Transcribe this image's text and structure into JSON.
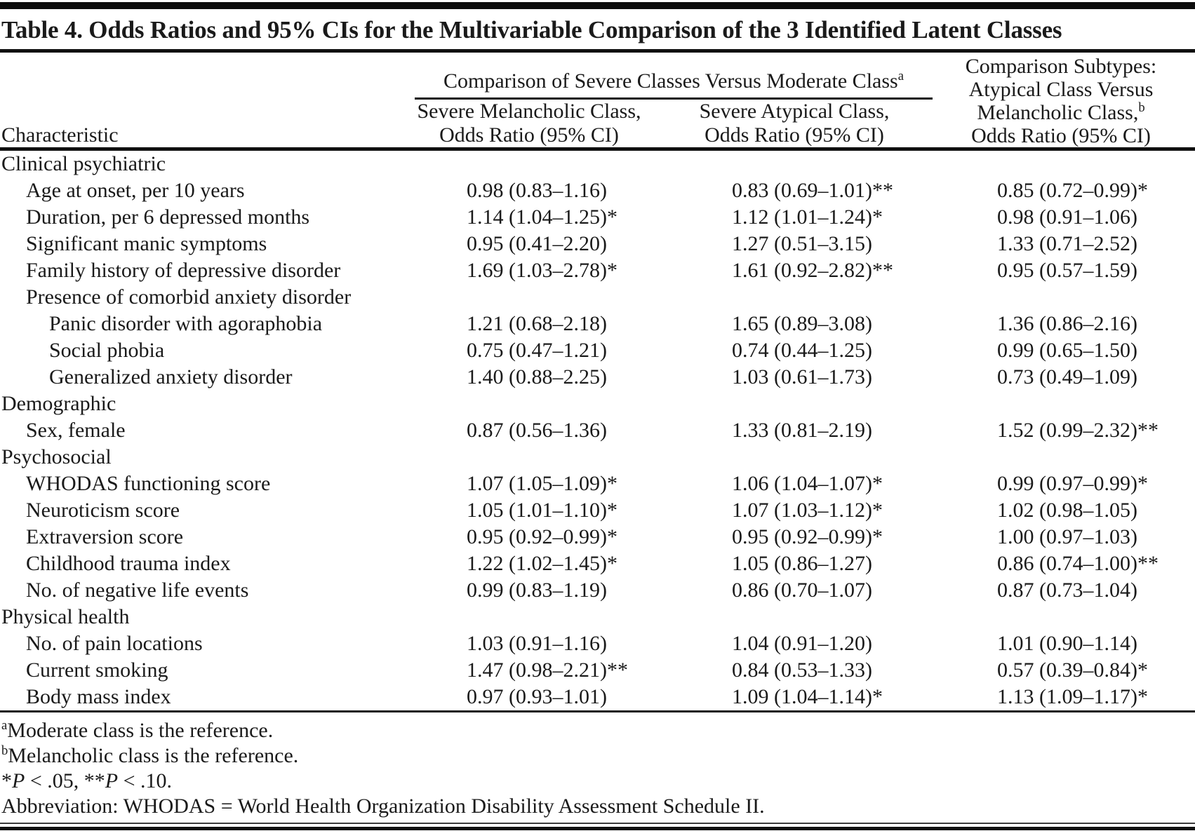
{
  "table": {
    "title": "Table 4. Odds Ratios and 95% CIs for the Multivariable Comparison of the 3 Identified Latent Classes",
    "columns": {
      "characteristic_label": "Characteristic",
      "spanner": {
        "text": "Comparison of Severe Classes Versus Moderate Class",
        "sup": "a"
      },
      "col_melancholic": {
        "line1": "Severe Melancholic Class,",
        "line2": "Odds Ratio (95% CI)"
      },
      "col_atypical": {
        "line1": "Severe Atypical Class,",
        "line2": "Odds Ratio (95% CI)"
      },
      "col_subtypes": {
        "line1": "Comparison Subtypes:",
        "line2": "Atypical Class Versus",
        "line3": "Melancholic Class,",
        "line3_sup": "b",
        "line4": "Odds Ratio (95% CI)"
      }
    },
    "rows": [
      {
        "label": "Clinical psychiatric",
        "indent": 0,
        "values": [
          "",
          "",
          ""
        ]
      },
      {
        "label": "Age at onset, per 10 years",
        "indent": 1,
        "values": [
          "0.98 (0.83–1.16)",
          "0.83 (0.69–1.01)**",
          "0.85 (0.72–0.99)*"
        ]
      },
      {
        "label": "Duration, per 6 depressed months",
        "indent": 1,
        "values": [
          "1.14 (1.04–1.25)*",
          "1.12 (1.01–1.24)*",
          "0.98 (0.91–1.06)"
        ]
      },
      {
        "label": "Significant manic symptoms",
        "indent": 1,
        "values": [
          "0.95 (0.41–2.20)",
          "1.27 (0.51–3.15)",
          "1.33 (0.71–2.52)"
        ]
      },
      {
        "label": "Family history of depressive disorder",
        "indent": 1,
        "values": [
          "1.69 (1.03–2.78)*",
          "1.61 (0.92–2.82)**",
          "0.95 (0.57–1.59)"
        ]
      },
      {
        "label": "Presence of comorbid anxiety disorder",
        "indent": 1,
        "values": [
          "",
          "",
          ""
        ]
      },
      {
        "label": "Panic disorder with agoraphobia",
        "indent": 2,
        "values": [
          "1.21 (0.68–2.18)",
          "1.65 (0.89–3.08)",
          "1.36 (0.86–2.16)"
        ]
      },
      {
        "label": "Social phobia",
        "indent": 2,
        "values": [
          "0.75 (0.47–1.21)",
          "0.74 (0.44–1.25)",
          "0.99 (0.65–1.50)"
        ]
      },
      {
        "label": "Generalized anxiety disorder",
        "indent": 2,
        "values": [
          "1.40 (0.88–2.25)",
          "1.03 (0.61–1.73)",
          "0.73 (0.49–1.09)"
        ]
      },
      {
        "label": "Demographic",
        "indent": 0,
        "values": [
          "",
          "",
          ""
        ]
      },
      {
        "label": "Sex, female",
        "indent": 1,
        "values": [
          "0.87 (0.56–1.36)",
          "1.33 (0.81–2.19)",
          "1.52 (0.99–2.32)**"
        ]
      },
      {
        "label": "Psychosocial",
        "indent": 0,
        "values": [
          "",
          "",
          ""
        ]
      },
      {
        "label": "WHODAS functioning score",
        "indent": 1,
        "values": [
          "1.07 (1.05–1.09)*",
          "1.06 (1.04–1.07)*",
          "0.99 (0.97–0.99)*"
        ]
      },
      {
        "label": "Neuroticism score",
        "indent": 1,
        "values": [
          "1.05 (1.01–1.10)*",
          "1.07 (1.03–1.12)*",
          "1.02 (0.98–1.05)"
        ]
      },
      {
        "label": "Extraversion score",
        "indent": 1,
        "values": [
          "0.95 (0.92–0.99)*",
          "0.95 (0.92–0.99)*",
          "1.00 (0.97–1.03)"
        ]
      },
      {
        "label": "Childhood trauma index",
        "indent": 1,
        "values": [
          "1.22 (1.02–1.45)*",
          "1.05 (0.86–1.27)",
          "0.86 (0.74–1.00)**"
        ]
      },
      {
        "label": "No. of negative life events",
        "indent": 1,
        "values": [
          "0.99 (0.83–1.19)",
          "0.86 (0.70–1.07)",
          "0.87 (0.73–1.04)"
        ]
      },
      {
        "label": "Physical health",
        "indent": 0,
        "values": [
          "",
          "",
          ""
        ]
      },
      {
        "label": "No. of pain locations",
        "indent": 1,
        "values": [
          "1.03 (0.91–1.16)",
          "1.04 (0.91–1.20)",
          "1.01 (0.90–1.14)"
        ]
      },
      {
        "label": "Current smoking",
        "indent": 1,
        "values": [
          "1.47 (0.98–2.21)**",
          "0.84 (0.53–1.33)",
          "0.57 (0.39–0.84)*"
        ]
      },
      {
        "label": "Body mass index",
        "indent": 1,
        "values": [
          "0.97 (0.93–1.01)",
          "1.09 (1.04–1.14)*",
          "1.13 (1.09–1.17)*"
        ]
      }
    ],
    "footnotes": [
      [
        {
          "t": "a",
          "sup": true
        },
        {
          "t": "Moderate class is the reference."
        }
      ],
      [
        {
          "t": "b",
          "sup": true
        },
        {
          "t": "Melancholic class is the reference."
        }
      ],
      [
        {
          "t": "*"
        },
        {
          "t": "P",
          "i": true
        },
        {
          "t": " < .05, **"
        },
        {
          "t": "P",
          "i": true
        },
        {
          "t": " < .10."
        }
      ],
      [
        {
          "t": "Abbreviation: WHODAS = World Health Organization Disability Assessment Schedule II."
        }
      ]
    ]
  }
}
